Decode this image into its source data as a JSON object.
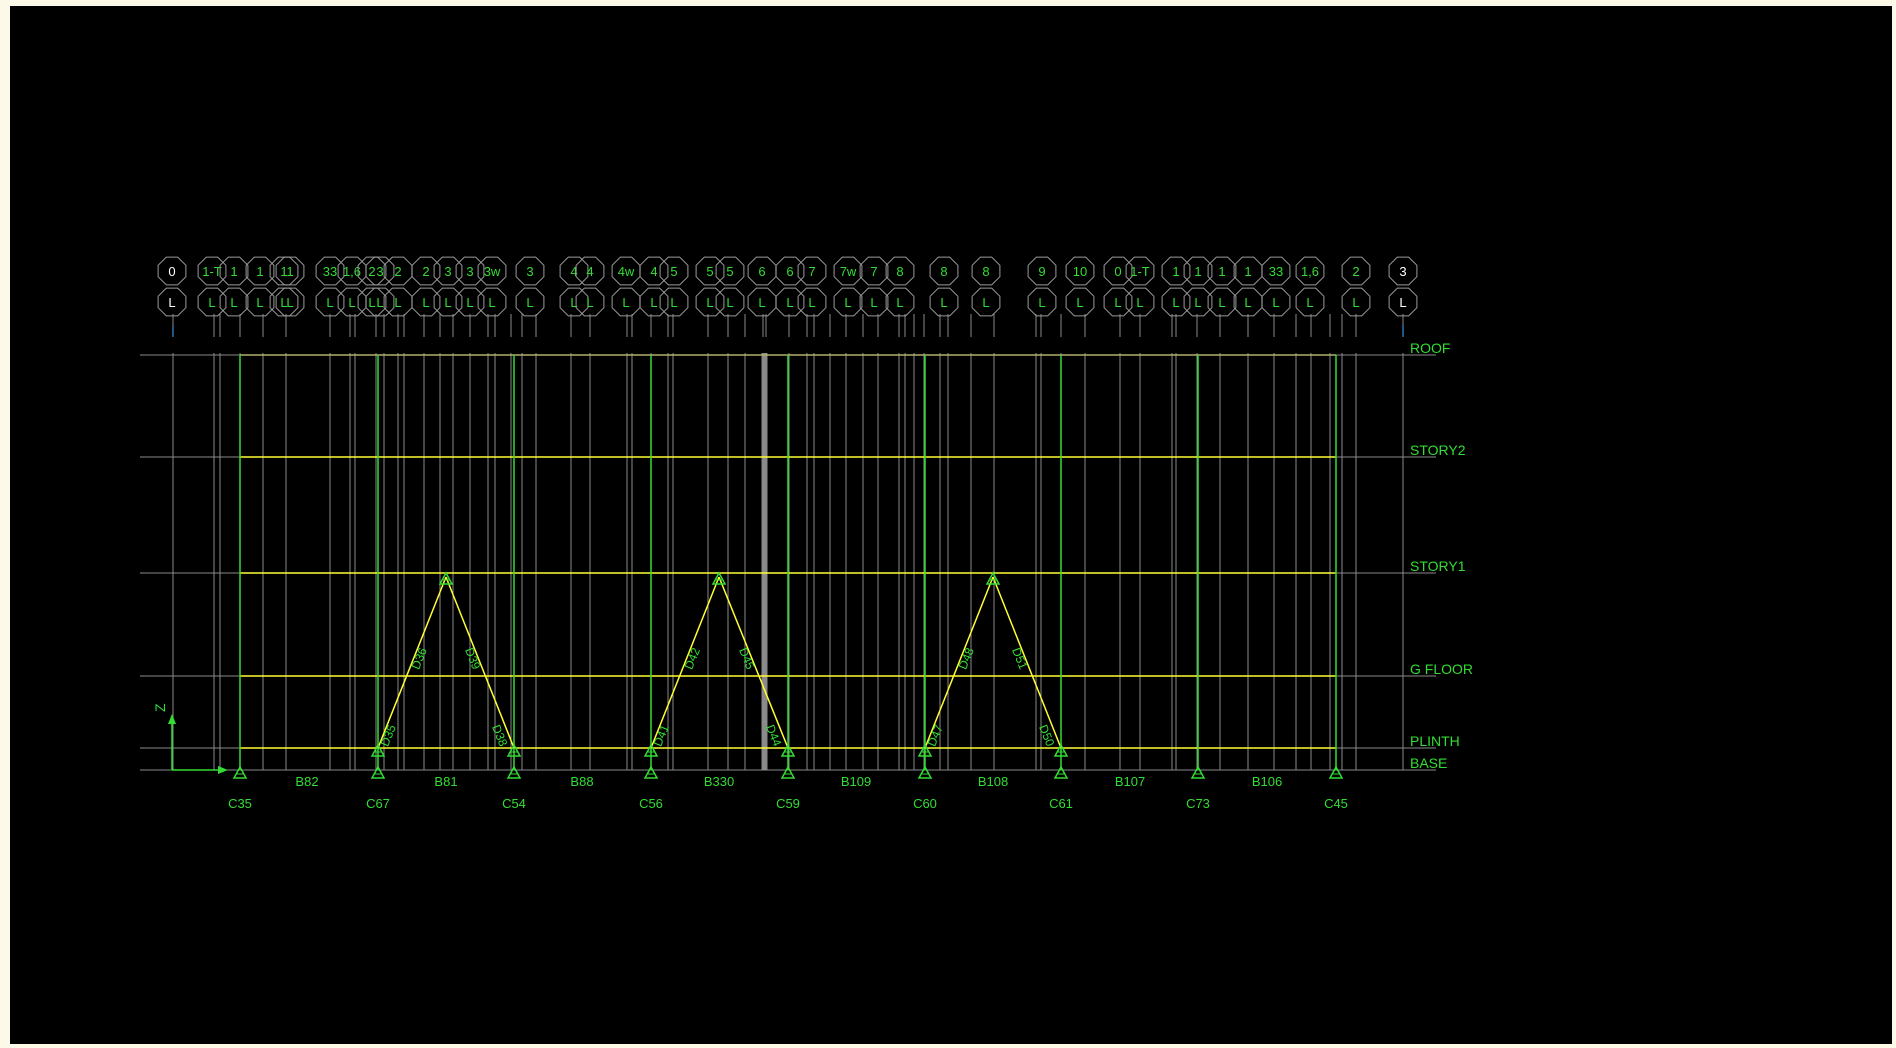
{
  "view": {
    "type": "elevation",
    "axis": {
      "z_label": "Z"
    }
  },
  "colors": {
    "background": "#000000",
    "grid": "#8a8a8a",
    "beam": "#ffff33",
    "column": "#33dd33",
    "text": "#33dd33",
    "bubble": "#9a9a9a",
    "frame": "#fdf9e8"
  },
  "stories": [
    {
      "name": "ROOF"
    },
    {
      "name": "STORY2"
    },
    {
      "name": "STORY1"
    },
    {
      "name": "G FLOOR"
    },
    {
      "name": "PLINTH"
    },
    {
      "name": "BASE"
    }
  ],
  "columns": [
    "C35",
    "C67",
    "C54",
    "C56",
    "C59",
    "C60",
    "C61",
    "C73",
    "C45"
  ],
  "beams": [
    "B82",
    "B81",
    "B88",
    "B330",
    "B109",
    "B108",
    "B107",
    "B106"
  ],
  "braces": [
    "D36",
    "D39",
    "D35",
    "D38",
    "D42",
    "D45",
    "D41",
    "D44",
    "D48",
    "D51",
    "D47",
    "D50"
  ],
  "grid_bubbles": {
    "top_row": [
      "0",
      "1-T",
      "1",
      "1",
      "1",
      "1",
      "33",
      "1,6",
      "2",
      "3",
      "2",
      "2",
      "3",
      "3",
      "3w",
      "3",
      "4",
      "4",
      "4w",
      "4",
      "5",
      "5",
      "5",
      "6",
      "6",
      "7",
      "7w",
      "7",
      "8",
      "8",
      "8",
      "9",
      "10"
    ],
    "bottom_label": "L"
  }
}
